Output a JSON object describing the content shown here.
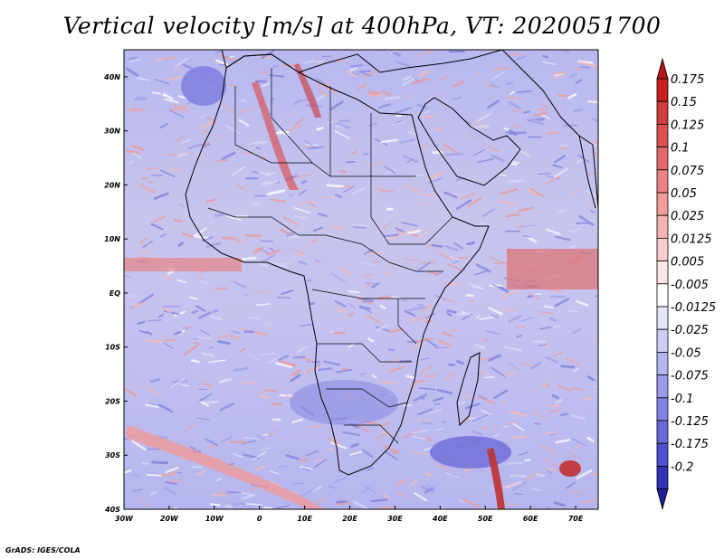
{
  "title": "Vertical velocity [m/s] at 400hPa, VT: 2020051700",
  "credit": "GrADS: IGES/COLA",
  "map": {
    "variable": "Vertical velocity",
    "units": "m/s",
    "level": "400hPa",
    "valid_time": "2020051700",
    "lon_range": [
      -30,
      75
    ],
    "lat_range": [
      -40,
      45
    ],
    "lon_ticks": [
      {
        "value": -30,
        "label": "30W"
      },
      {
        "value": -20,
        "label": "20W"
      },
      {
        "value": -10,
        "label": "10W"
      },
      {
        "value": 0,
        "label": "0"
      },
      {
        "value": 10,
        "label": "10E"
      },
      {
        "value": 20,
        "label": "20E"
      },
      {
        "value": 30,
        "label": "30E"
      },
      {
        "value": 40,
        "label": "40E"
      },
      {
        "value": 50,
        "label": "50E"
      },
      {
        "value": 60,
        "label": "60E"
      },
      {
        "value": 70,
        "label": "70E"
      }
    ],
    "lat_ticks": [
      {
        "value": 40,
        "label": "40N"
      },
      {
        "value": 30,
        "label": "30N"
      },
      {
        "value": 20,
        "label": "20N"
      },
      {
        "value": 10,
        "label": "10N"
      },
      {
        "value": 0,
        "label": "EQ"
      },
      {
        "value": -10,
        "label": "10S"
      },
      {
        "value": -20,
        "label": "20S"
      },
      {
        "value": -30,
        "label": "30S"
      },
      {
        "value": -40,
        "label": "40S"
      }
    ]
  },
  "colorbar": {
    "levels": [
      {
        "label": "0.175",
        "color": "#c81e1e"
      },
      {
        "label": "0.15",
        "color": "#d23c3c"
      },
      {
        "label": "0.125",
        "color": "#dc5050"
      },
      {
        "label": "0.1",
        "color": "#e66969"
      },
      {
        "label": "0.075",
        "color": "#ec8282"
      },
      {
        "label": "0.05",
        "color": "#f19b9b"
      },
      {
        "label": "0.025",
        "color": "#f5b4b4"
      },
      {
        "label": "0.0125",
        "color": "#f9cdcd"
      },
      {
        "label": "0.005",
        "color": "#fce6e6"
      },
      {
        "label": "-0.005",
        "color": "#ffffff"
      },
      {
        "label": "-0.0125",
        "color": "#e6e6fa"
      },
      {
        "label": "-0.025",
        "color": "#cdcdf5"
      },
      {
        "label": "-0.05",
        "color": "#b4b4f0"
      },
      {
        "label": "-0.075",
        "color": "#9b9beb"
      },
      {
        "label": "-0.1",
        "color": "#8282e6"
      },
      {
        "label": "-0.125",
        "color": "#6969dc"
      },
      {
        "label": "-0.175",
        "color": "#5050d2"
      },
      {
        "label": "-0.2",
        "color": "#3232b4"
      }
    ],
    "top_color": "#b41414",
    "bottom_color": "#1e1e96"
  }
}
